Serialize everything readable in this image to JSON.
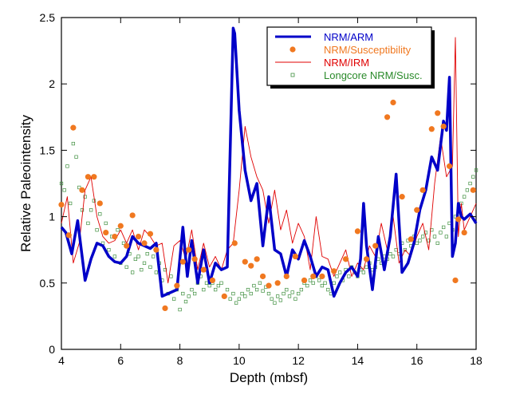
{
  "chart_data": {
    "type": "line",
    "title": "",
    "xlabel": "Depth (mbsf)",
    "ylabel": "Relative Paleointensity",
    "xlim": [
      4,
      18
    ],
    "ylim": [
      0,
      2.5
    ],
    "x_ticks": [
      "4",
      "6",
      "8",
      "10",
      "12",
      "14",
      "16",
      "18"
    ],
    "y_ticks": [
      "0",
      "0.5",
      "1",
      "1.5",
      "2",
      "2.5"
    ],
    "legend_position": "top-right",
    "series": [
      {
        "name": "NRM/ARM",
        "style": "line",
        "color": "#0000c8",
        "x": [
          4.0,
          4.15,
          4.35,
          4.55,
          4.8,
          5.0,
          5.2,
          5.4,
          5.6,
          5.8,
          6.0,
          6.2,
          6.4,
          6.6,
          6.8,
          7.0,
          7.2,
          7.4,
          7.6,
          7.9,
          8.1,
          8.25,
          8.4,
          8.6,
          8.8,
          9.0,
          9.2,
          9.4,
          9.6,
          9.8,
          9.85,
          10.0,
          10.2,
          10.4,
          10.6,
          10.8,
          11.0,
          11.2,
          11.4,
          11.6,
          11.8,
          12.0,
          12.2,
          12.4,
          12.6,
          12.8,
          13.0,
          13.2,
          13.4,
          13.6,
          13.8,
          14.0,
          14.1,
          14.2,
          14.3,
          14.5,
          14.7,
          14.9,
          15.1,
          15.3,
          15.5,
          15.7,
          15.9,
          16.1,
          16.3,
          16.5,
          16.7,
          16.9,
          17.0,
          17.1,
          17.2,
          17.3,
          17.4,
          17.5,
          17.6,
          17.8,
          18.0
        ],
        "values": [
          0.92,
          0.88,
          0.72,
          0.97,
          0.52,
          0.68,
          0.8,
          0.78,
          0.7,
          0.66,
          0.65,
          0.7,
          0.85,
          0.8,
          0.78,
          0.76,
          0.8,
          0.4,
          0.42,
          0.45,
          0.92,
          0.55,
          0.82,
          0.5,
          0.75,
          0.5,
          0.65,
          0.6,
          0.62,
          2.42,
          2.38,
          1.8,
          1.35,
          1.12,
          1.25,
          0.78,
          1.15,
          0.75,
          0.72,
          0.55,
          0.75,
          0.68,
          0.82,
          0.7,
          0.55,
          0.62,
          0.6,
          0.4,
          0.5,
          0.58,
          0.62,
          0.55,
          0.68,
          1.1,
          0.78,
          0.45,
          0.85,
          0.6,
          0.85,
          1.32,
          0.58,
          0.65,
          0.8,
          1.05,
          1.2,
          1.45,
          1.35,
          1.72,
          1.65,
          2.05,
          0.7,
          0.8,
          1.1,
          1.0,
          0.98,
          1.02,
          0.95
        ]
      },
      {
        "name": "NRM/Susceptibility",
        "style": "dot",
        "color": "#f07820",
        "x": [
          4.0,
          4.25,
          4.4,
          4.7,
          4.9,
          5.1,
          5.3,
          5.5,
          5.8,
          6.0,
          6.2,
          6.4,
          6.6,
          6.8,
          7.0,
          7.2,
          7.5,
          7.9,
          8.1,
          8.3,
          8.5,
          8.8,
          9.1,
          9.5,
          9.85,
          10.2,
          10.4,
          10.6,
          10.8,
          11.0,
          11.3,
          11.6,
          11.9,
          12.2,
          12.5,
          12.8,
          13.2,
          13.6,
          14.0,
          14.3,
          14.6,
          15.0,
          15.2,
          15.5,
          15.8,
          16.0,
          16.2,
          16.5,
          16.7,
          16.9,
          17.1,
          17.3,
          17.4,
          17.6,
          17.9
        ],
        "values": [
          1.09,
          0.86,
          1.67,
          1.2,
          1.3,
          1.3,
          1.1,
          0.88,
          0.85,
          0.93,
          0.78,
          1.01,
          0.85,
          0.8,
          0.87,
          0.75,
          0.31,
          0.48,
          0.66,
          0.75,
          0.68,
          0.6,
          0.52,
          0.4,
          0.8,
          0.66,
          0.63,
          0.68,
          0.55,
          0.48,
          0.5,
          0.55,
          0.7,
          0.52,
          0.55,
          0.55,
          0.59,
          0.68,
          0.89,
          0.68,
          0.78,
          1.75,
          1.86,
          1.15,
          0.83,
          1.05,
          1.2,
          1.66,
          1.78,
          1.68,
          1.38,
          0.52,
          0.98,
          0.88,
          1.2
        ]
      },
      {
        "name": "NRM/IRM",
        "style": "thin-line",
        "color": "#e00000",
        "x": [
          4.0,
          4.2,
          4.4,
          4.6,
          4.8,
          5.0,
          5.2,
          5.4,
          5.6,
          5.8,
          6.0,
          6.2,
          6.4,
          6.6,
          6.8,
          7.0,
          7.2,
          7.4,
          7.6,
          7.8,
          8.0,
          8.2,
          8.4,
          8.6,
          8.8,
          9.0,
          9.2,
          9.4,
          9.6,
          9.8,
          10.0,
          10.2,
          10.4,
          10.6,
          10.8,
          11.0,
          11.2,
          11.4,
          11.6,
          11.8,
          12.0,
          12.2,
          12.4,
          12.6,
          12.8,
          13.0,
          13.2,
          13.4,
          13.6,
          13.8,
          14.0,
          14.2,
          14.4,
          14.6,
          14.8,
          15.0,
          15.2,
          15.4,
          15.6,
          15.8,
          16.0,
          16.2,
          16.4,
          16.6,
          16.8,
          17.0,
          17.2,
          17.3,
          17.4,
          17.5,
          17.6,
          17.8,
          18.0
        ],
        "values": [
          0.95,
          1.15,
          0.65,
          0.8,
          1.2,
          1.3,
          1.0,
          0.85,
          0.8,
          0.82,
          0.9,
          0.8,
          0.9,
          0.75,
          0.9,
          0.85,
          0.78,
          0.8,
          0.5,
          0.78,
          0.82,
          0.68,
          0.9,
          0.6,
          0.8,
          0.62,
          0.7,
          0.6,
          0.75,
          0.8,
          1.2,
          1.68,
          1.45,
          1.3,
          1.2,
          0.95,
          1.2,
          0.9,
          1.05,
          0.8,
          0.95,
          0.85,
          0.6,
          1.0,
          0.7,
          0.68,
          0.55,
          0.65,
          0.75,
          0.55,
          0.65,
          0.6,
          0.78,
          0.7,
          0.95,
          0.75,
          1.0,
          0.65,
          0.75,
          0.7,
          0.85,
          0.95,
          0.75,
          1.25,
          1.6,
          1.3,
          1.38,
          2.35,
          0.85,
          1.1,
          0.9,
          1.0,
          1.1
        ]
      },
      {
        "name": "Longcore NRM/Susc.",
        "style": "open-square",
        "color": "#409040",
        "x": [
          4.0,
          4.1,
          4.2,
          4.3,
          4.4,
          4.5,
          4.6,
          4.7,
          4.8,
          4.9,
          5.0,
          5.1,
          5.2,
          5.3,
          5.4,
          5.5,
          5.6,
          5.7,
          5.8,
          5.9,
          6.0,
          6.1,
          6.2,
          6.3,
          6.4,
          6.5,
          6.6,
          6.7,
          6.8,
          6.9,
          7.0,
          7.1,
          7.2,
          7.3,
          7.4,
          7.5,
          7.6,
          7.7,
          7.8,
          7.9,
          8.0,
          8.1,
          8.2,
          8.3,
          8.4,
          8.5,
          8.6,
          8.7,
          8.8,
          8.9,
          9.0,
          9.1,
          9.2,
          9.3,
          9.4,
          9.5,
          9.6,
          9.7,
          9.8,
          9.9,
          10.0,
          10.1,
          10.2,
          10.3,
          10.4,
          10.5,
          10.6,
          10.7,
          10.8,
          10.9,
          11.0,
          11.1,
          11.2,
          11.3,
          11.4,
          11.5,
          11.6,
          11.7,
          11.8,
          11.9,
          12.0,
          12.1,
          12.2,
          12.3,
          12.4,
          12.5,
          12.6,
          12.7,
          12.8,
          12.9,
          13.0,
          13.1,
          13.2,
          13.3,
          13.4,
          13.5,
          13.6,
          13.7,
          13.8,
          13.9,
          14.0,
          14.1,
          14.2,
          14.3,
          14.4,
          14.5,
          14.6,
          14.7,
          14.8,
          14.9,
          15.0,
          15.1,
          15.2,
          15.3,
          15.4,
          15.5,
          15.6,
          15.7,
          15.8,
          15.9,
          16.0,
          16.1,
          16.2,
          16.3,
          16.4,
          16.5,
          16.6,
          16.7,
          16.8,
          16.9,
          17.0,
          17.1,
          17.2,
          17.3,
          17.4,
          17.5,
          17.6,
          17.7,
          17.8,
          17.9,
          18.0
        ],
        "values": [
          1.25,
          1.2,
          1.38,
          1.1,
          1.55,
          1.45,
          1.22,
          1.05,
          1.15,
          0.95,
          1.05,
          1.12,
          0.9,
          1.02,
          0.8,
          0.95,
          0.75,
          0.85,
          0.7,
          0.9,
          0.65,
          0.8,
          0.62,
          0.72,
          0.58,
          0.68,
          0.7,
          0.6,
          0.65,
          0.72,
          0.62,
          0.7,
          0.58,
          0.65,
          0.52,
          0.6,
          0.42,
          0.55,
          0.38,
          0.45,
          0.3,
          0.42,
          0.36,
          0.4,
          0.45,
          0.42,
          0.5,
          0.55,
          0.45,
          0.5,
          0.48,
          0.5,
          0.45,
          0.48,
          0.5,
          0.4,
          0.45,
          0.38,
          0.42,
          0.35,
          0.38,
          0.42,
          0.4,
          0.45,
          0.42,
          0.48,
          0.45,
          0.5,
          0.44,
          0.47,
          0.42,
          0.38,
          0.35,
          0.4,
          0.37,
          0.42,
          0.45,
          0.4,
          0.43,
          0.38,
          0.42,
          0.45,
          0.5,
          0.48,
          0.52,
          0.5,
          0.55,
          0.52,
          0.48,
          0.5,
          0.45,
          0.42,
          0.5,
          0.55,
          0.58,
          0.52,
          0.6,
          0.55,
          0.62,
          0.58,
          0.55,
          0.6,
          0.58,
          0.62,
          0.65,
          0.6,
          0.62,
          0.68,
          0.65,
          0.7,
          0.68,
          0.72,
          0.7,
          0.75,
          0.72,
          0.8,
          0.75,
          0.82,
          0.78,
          0.85,
          0.8,
          0.82,
          0.85,
          0.88,
          0.82,
          0.9,
          0.85,
          0.8,
          0.88,
          0.92,
          0.85,
          0.95,
          0.9,
          1.0,
          1.05,
          1.1,
          1.15,
          1.2,
          1.25,
          1.3,
          1.35
        ]
      }
    ]
  }
}
